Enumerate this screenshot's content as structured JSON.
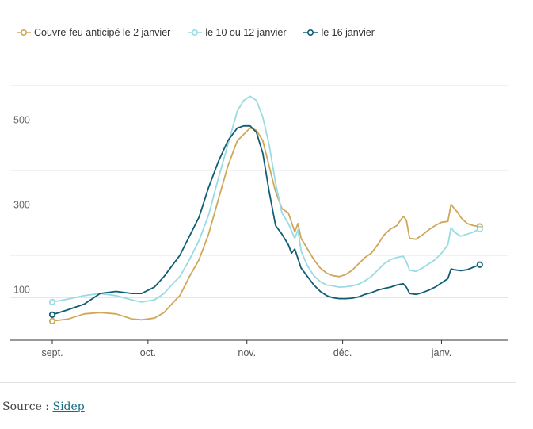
{
  "legend": {
    "items": [
      {
        "label": "Couvre-feu anticipé le 2 janvier",
        "color": "#d0a75a"
      },
      {
        "label": "le 10 ou 12 janvier",
        "color": "#99dbe3"
      },
      {
        "label": "le 16 janvier",
        "color": "#0f5d73"
      }
    ]
  },
  "source": {
    "prefix": "Source : ",
    "link_label": "Sidep"
  },
  "chart_data": {
    "type": "line",
    "title": "",
    "xlabel": "",
    "ylabel": "",
    "x_domain": [
      0,
      141
    ],
    "ylim": [
      0,
      600
    ],
    "y_ticks": [
      {
        "value": 500,
        "label": "500"
      },
      {
        "value": 300,
        "label": "300"
      },
      {
        "value": 100,
        "label": "100"
      }
    ],
    "gridlines": [
      100,
      200,
      300,
      400,
      500,
      600
    ],
    "x_ticks": [
      {
        "x": 0,
        "label": "sept."
      },
      {
        "x": 30,
        "label": "oct."
      },
      {
        "x": 61,
        "label": "nov."
      },
      {
        "x": 91,
        "label": "déc."
      },
      {
        "x": 122,
        "label": "janv."
      }
    ],
    "series": [
      {
        "name": "Couvre-feu anticipé le 2 janvier",
        "color": "#d0a75a",
        "points": [
          [
            0,
            45
          ],
          [
            5,
            50
          ],
          [
            10,
            62
          ],
          [
            15,
            65
          ],
          [
            20,
            62
          ],
          [
            25,
            50
          ],
          [
            28,
            48
          ],
          [
            32,
            52
          ],
          [
            35,
            65
          ],
          [
            38,
            90
          ],
          [
            40,
            105
          ],
          [
            43,
            150
          ],
          [
            46,
            190
          ],
          [
            49,
            250
          ],
          [
            52,
            330
          ],
          [
            55,
            410
          ],
          [
            58,
            470
          ],
          [
            60,
            485
          ],
          [
            62,
            500
          ],
          [
            64,
            495
          ],
          [
            66,
            470
          ],
          [
            68,
            410
          ],
          [
            70,
            350
          ],
          [
            72,
            310
          ],
          [
            74,
            300
          ],
          [
            76,
            255
          ],
          [
            77,
            275
          ],
          [
            78,
            240
          ],
          [
            80,
            215
          ],
          [
            82,
            190
          ],
          [
            84,
            170
          ],
          [
            86,
            158
          ],
          [
            88,
            152
          ],
          [
            90,
            150
          ],
          [
            92,
            155
          ],
          [
            94,
            165
          ],
          [
            96,
            180
          ],
          [
            98,
            195
          ],
          [
            100,
            205
          ],
          [
            102,
            225
          ],
          [
            104,
            248
          ],
          [
            106,
            262
          ],
          [
            108,
            270
          ],
          [
            110,
            292
          ],
          [
            111,
            283
          ],
          [
            112,
            240
          ],
          [
            114,
            238
          ],
          [
            116,
            248
          ],
          [
            118,
            260
          ],
          [
            120,
            270
          ],
          [
            122,
            278
          ],
          [
            124,
            280
          ],
          [
            125,
            320
          ],
          [
            126,
            310
          ],
          [
            127,
            302
          ],
          [
            128,
            290
          ],
          [
            130,
            275
          ],
          [
            132,
            270
          ],
          [
            134,
            268
          ]
        ]
      },
      {
        "name": "le 10 ou 12 janvier",
        "color": "#99dbe3",
        "points": [
          [
            0,
            90
          ],
          [
            5,
            97
          ],
          [
            10,
            105
          ],
          [
            15,
            110
          ],
          [
            20,
            105
          ],
          [
            25,
            95
          ],
          [
            28,
            90
          ],
          [
            32,
            95
          ],
          [
            35,
            110
          ],
          [
            38,
            135
          ],
          [
            40,
            150
          ],
          [
            43,
            190
          ],
          [
            46,
            235
          ],
          [
            49,
            295
          ],
          [
            52,
            380
          ],
          [
            55,
            460
          ],
          [
            58,
            540
          ],
          [
            60,
            565
          ],
          [
            62,
            575
          ],
          [
            64,
            565
          ],
          [
            66,
            525
          ],
          [
            68,
            460
          ],
          [
            70,
            370
          ],
          [
            72,
            300
          ],
          [
            74,
            275
          ],
          [
            76,
            240
          ],
          [
            77,
            260
          ],
          [
            78,
            210
          ],
          [
            80,
            175
          ],
          [
            82,
            152
          ],
          [
            84,
            138
          ],
          [
            86,
            130
          ],
          [
            88,
            128
          ],
          [
            90,
            125
          ],
          [
            92,
            126
          ],
          [
            94,
            128
          ],
          [
            96,
            132
          ],
          [
            98,
            140
          ],
          [
            100,
            150
          ],
          [
            102,
            165
          ],
          [
            104,
            180
          ],
          [
            106,
            190
          ],
          [
            108,
            195
          ],
          [
            110,
            198
          ],
          [
            111,
            185
          ],
          [
            112,
            165
          ],
          [
            114,
            162
          ],
          [
            116,
            170
          ],
          [
            118,
            180
          ],
          [
            120,
            190
          ],
          [
            122,
            205
          ],
          [
            124,
            225
          ],
          [
            125,
            265
          ],
          [
            126,
            255
          ],
          [
            127,
            250
          ],
          [
            128,
            245
          ],
          [
            130,
            250
          ],
          [
            132,
            255
          ],
          [
            134,
            262
          ]
        ]
      },
      {
        "name": "le 16 janvier",
        "color": "#0f5d73",
        "points": [
          [
            0,
            60
          ],
          [
            5,
            72
          ],
          [
            10,
            85
          ],
          [
            15,
            110
          ],
          [
            20,
            115
          ],
          [
            25,
            110
          ],
          [
            28,
            110
          ],
          [
            32,
            125
          ],
          [
            35,
            150
          ],
          [
            38,
            180
          ],
          [
            40,
            200
          ],
          [
            43,
            245
          ],
          [
            46,
            290
          ],
          [
            49,
            360
          ],
          [
            52,
            420
          ],
          [
            55,
            470
          ],
          [
            58,
            500
          ],
          [
            60,
            505
          ],
          [
            62,
            505
          ],
          [
            64,
            490
          ],
          [
            66,
            440
          ],
          [
            68,
            350
          ],
          [
            70,
            270
          ],
          [
            72,
            250
          ],
          [
            74,
            225
          ],
          [
            75,
            205
          ],
          [
            76,
            215
          ],
          [
            78,
            170
          ],
          [
            80,
            150
          ],
          [
            82,
            130
          ],
          [
            84,
            115
          ],
          [
            86,
            105
          ],
          [
            88,
            100
          ],
          [
            90,
            98
          ],
          [
            92,
            98
          ],
          [
            94,
            99
          ],
          [
            96,
            102
          ],
          [
            98,
            108
          ],
          [
            100,
            112
          ],
          [
            102,
            118
          ],
          [
            104,
            122
          ],
          [
            106,
            125
          ],
          [
            108,
            130
          ],
          [
            110,
            133
          ],
          [
            111,
            125
          ],
          [
            112,
            110
          ],
          [
            114,
            108
          ],
          [
            116,
            112
          ],
          [
            118,
            118
          ],
          [
            120,
            125
          ],
          [
            122,
            135
          ],
          [
            124,
            145
          ],
          [
            125,
            168
          ],
          [
            126,
            166
          ],
          [
            128,
            164
          ],
          [
            130,
            166
          ],
          [
            132,
            172
          ],
          [
            134,
            178
          ]
        ]
      }
    ]
  }
}
